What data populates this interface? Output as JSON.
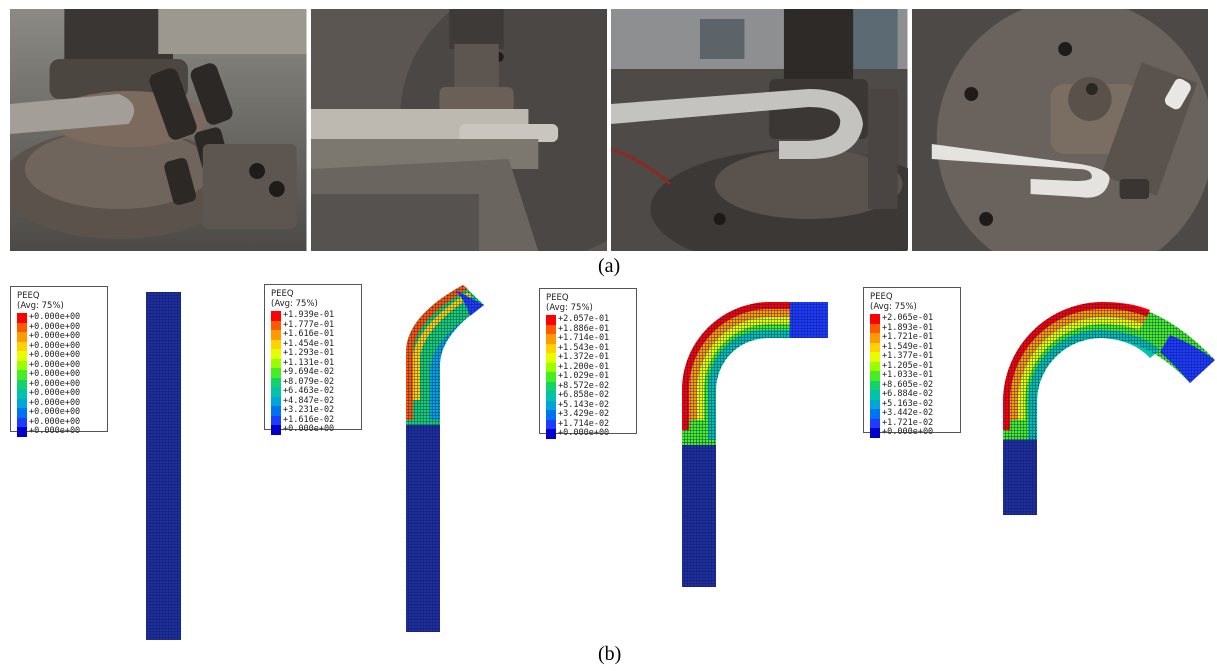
{
  "captions": {
    "a": "(a)",
    "b": "(b)"
  },
  "photos": [
    {
      "name": "photo-stage-1",
      "subject": "rotary draw bending die with straight tube clamped"
    },
    {
      "name": "photo-stage-2",
      "subject": "bending die with tube and pressure die"
    },
    {
      "name": "photo-stage-3",
      "subject": "tube bent around die"
    },
    {
      "name": "photo-stage-4",
      "subject": "tube bent past 90 degrees"
    }
  ],
  "legends": [
    {
      "title": "PEEQ",
      "subtitle": "(Avg: 75%)",
      "values": [
        "+0.000e+00",
        "+0.000e+00",
        "+0.000e+00",
        "+0.000e+00",
        "+0.000e+00",
        "+0.000e+00",
        "+0.000e+00",
        "+0.000e+00",
        "+0.000e+00",
        "+0.000e+00",
        "+0.000e+00",
        "+0.000e+00",
        "+0.000e+00"
      ]
    },
    {
      "title": "PEEQ",
      "subtitle": "(Avg: 75%)",
      "values": [
        "+1.939e-01",
        "+1.777e-01",
        "+1.616e-01",
        "+1.454e-01",
        "+1.293e-01",
        "+1.131e-01",
        "+9.694e-02",
        "+8.079e-02",
        "+6.463e-02",
        "+4.847e-02",
        "+3.231e-02",
        "+1.616e-02",
        "+0.000e+00"
      ]
    },
    {
      "title": "PEEQ",
      "subtitle": "(Avg: 75%)",
      "values": [
        "+2.057e-01",
        "+1.886e-01",
        "+1.714e-01",
        "+1.543e-01",
        "+1.372e-01",
        "+1.200e-01",
        "+1.029e-01",
        "+8.572e-02",
        "+6.858e-02",
        "+5.143e-02",
        "+3.429e-02",
        "+1.714e-02",
        "+0.000e+00"
      ]
    },
    {
      "title": "PEEQ",
      "subtitle": "(Avg: 75%)",
      "values": [
        "+2.065e-01",
        "+1.893e-01",
        "+1.721e-01",
        "+1.549e-01",
        "+1.377e-01",
        "+1.205e-01",
        "+1.033e-01",
        "+8.605e-02",
        "+6.884e-02",
        "+5.163e-02",
        "+3.442e-02",
        "+1.721e-02",
        "+0.000e+00"
      ]
    }
  ],
  "colors": {
    "contour": [
      "#ff0000",
      "#ff5a00",
      "#ff9a00",
      "#ffd200",
      "#e6ff00",
      "#99ff00",
      "#44ee22",
      "#14d26a",
      "#00c3aa",
      "#00a6d8",
      "#0074f0",
      "#1e3cff",
      "#0000cc"
    ],
    "tube_base": "#1f2f9c",
    "tube_mesh": "#0c1660"
  }
}
